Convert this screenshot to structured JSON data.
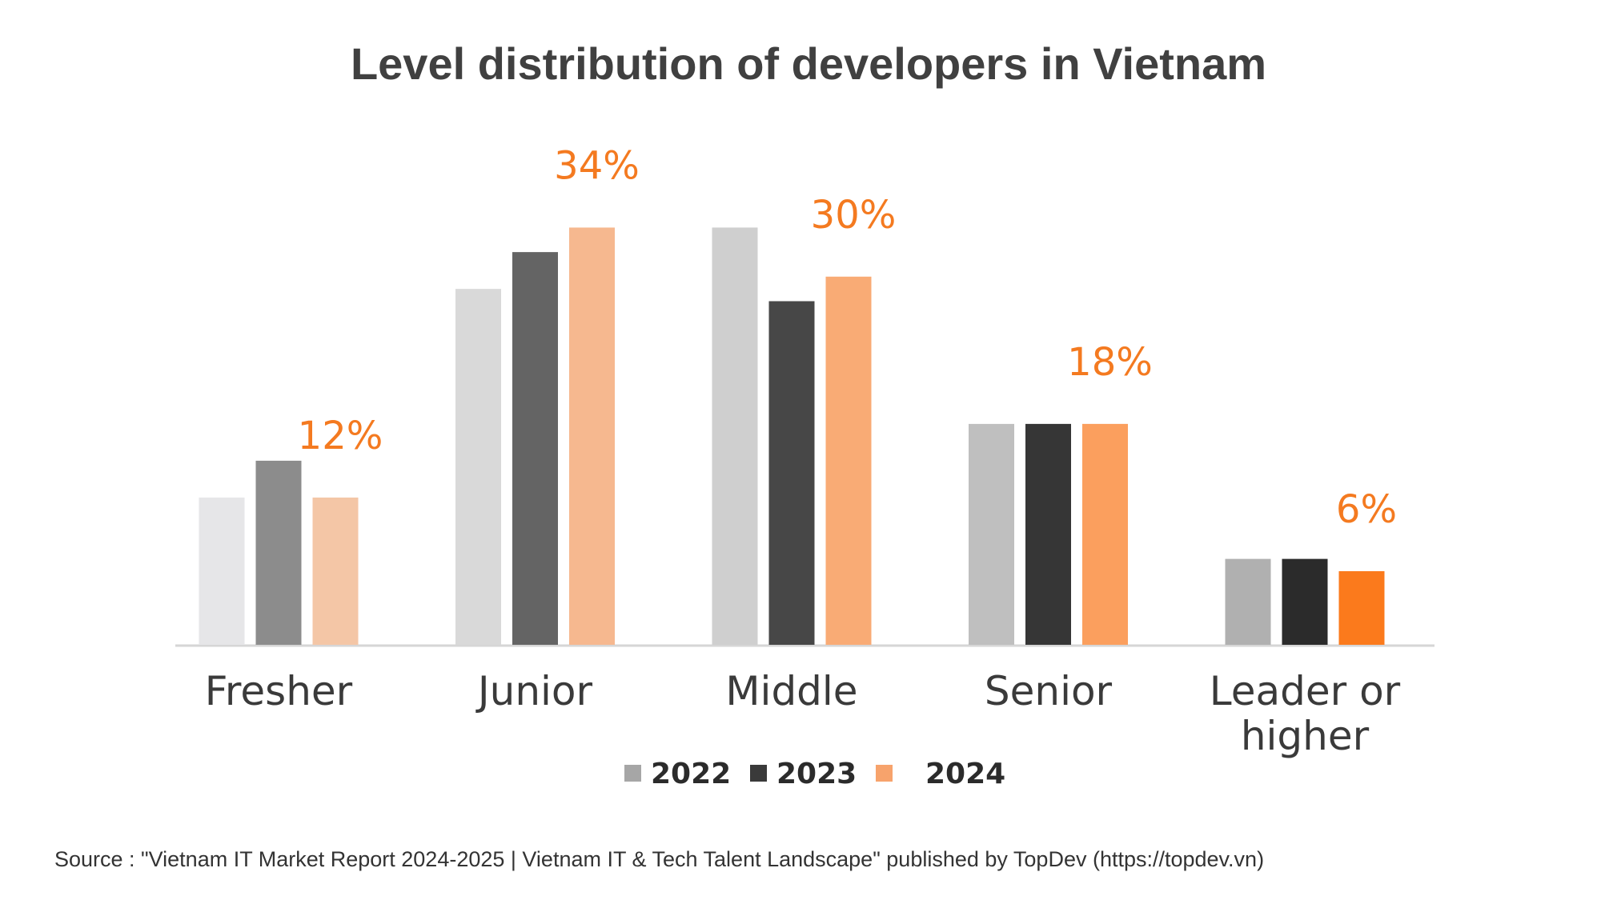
{
  "chart_data": {
    "type": "bar",
    "title": "Level distribution of developers in Vietnam",
    "categories": [
      "Fresher",
      "Junior",
      "Middle",
      "Senior",
      "Leader or higher"
    ],
    "series": [
      {
        "name": "2022",
        "color": "#a6a6a6",
        "colors": [
          "#e6e6e8",
          "#d9d9d9",
          "#cfcfcf",
          "#bfbfbf",
          "#b0b0b0"
        ],
        "values": [
          12,
          29,
          34,
          18,
          7
        ]
      },
      {
        "name": "2023",
        "color": "#3a3a3a",
        "colors": [
          "#8c8c8c",
          "#646464",
          "#474747",
          "#363636",
          "#2b2b2b"
        ],
        "values": [
          15,
          32,
          28,
          18,
          7
        ]
      },
      {
        "name": "2024",
        "color": "#f7a36c",
        "colors": [
          "#f4c6a6",
          "#f6b88f",
          "#f9ab75",
          "#fb9f5e",
          "#fb7a1c"
        ],
        "values": [
          12,
          34,
          30,
          18,
          6
        ],
        "value_labels": [
          "12%",
          "34%",
          "30%",
          "18%",
          "6%"
        ],
        "label_color": "#f47a20"
      }
    ],
    "source": "Source : \"Vietnam IT Market Report 2024-2025 | Vietnam IT & Tech Talent Landscape\" published by TopDev (https://topdev.vn)"
  }
}
